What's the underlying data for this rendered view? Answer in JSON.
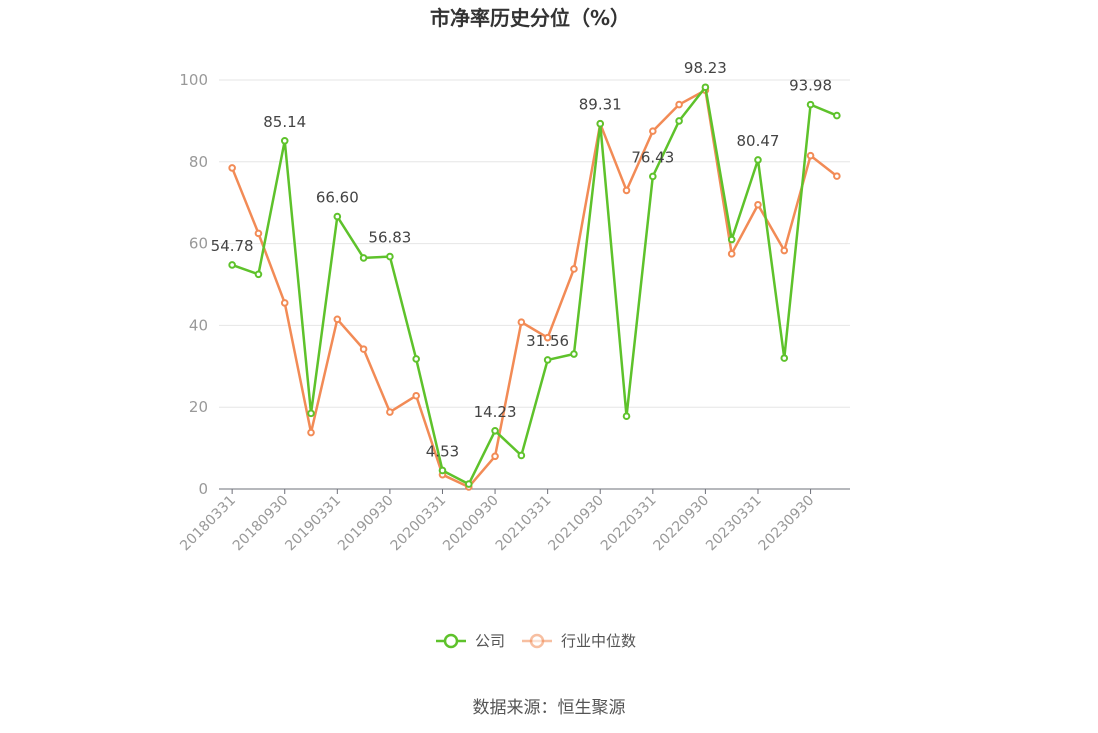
{
  "chart_data": {
    "type": "line",
    "title": "市净率历史分位（%）",
    "x": [
      "20180331",
      "20180630",
      "20180930",
      "20181231",
      "20190331",
      "20190630",
      "20190930",
      "20191231",
      "20200331",
      "20200630",
      "20200930",
      "20201231",
      "20210331",
      "20210630",
      "20210930",
      "20211231",
      "20220331",
      "20220630",
      "20220930",
      "20221231",
      "20230331",
      "20230630",
      "20230930",
      "20231231"
    ],
    "x_tick_labels": [
      "20180331",
      "20180930",
      "20190331",
      "20190930",
      "20200331",
      "20200930",
      "20210331",
      "20210930",
      "20220331",
      "20220930",
      "20230331",
      "20230930"
    ],
    "ylim": [
      0,
      100
    ],
    "y_ticks": [
      0,
      20,
      40,
      60,
      80,
      100
    ],
    "grid": true,
    "legend_position": "bottom",
    "series": [
      {
        "name": "公司",
        "color": "#5ec22b",
        "values": [
          54.78,
          52.5,
          85.14,
          18.5,
          66.6,
          56.5,
          56.83,
          31.8,
          4.53,
          1.2,
          14.23,
          8.2,
          31.56,
          33.0,
          89.31,
          17.8,
          76.43,
          90.0,
          98.23,
          61.0,
          80.47,
          32.0,
          93.98,
          91.3
        ],
        "data_labels": [
          "54.78",
          null,
          "85.14",
          null,
          "66.60",
          null,
          "56.83",
          null,
          "4.53",
          null,
          "14.23",
          null,
          "31.56",
          null,
          "89.31",
          null,
          "76.43",
          null,
          "98.23",
          null,
          "80.47",
          null,
          "93.98",
          null
        ]
      },
      {
        "name": "行业中位数",
        "color": "#f28b56",
        "values": [
          78.5,
          62.5,
          45.5,
          13.8,
          41.5,
          34.2,
          18.8,
          22.8,
          3.5,
          0.5,
          8.0,
          40.8,
          37.0,
          53.8,
          89.3,
          73.0,
          87.5,
          94.0,
          97.5,
          57.5,
          69.5,
          58.3,
          81.5,
          76.5
        ]
      }
    ],
    "source": "数据来源：恒生聚源"
  }
}
